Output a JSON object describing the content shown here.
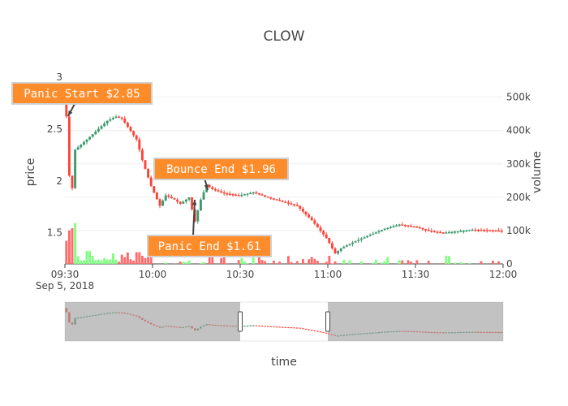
{
  "chart_data": {
    "type": "candlestick",
    "title": "CLOW",
    "xlabel": "time",
    "ylabel_price": "price",
    "ylabel_volume": "volume",
    "x_range": [
      "09:30",
      "12:00"
    ],
    "x_ticks": [
      "09:30",
      "10:00",
      "10:30",
      "11:00",
      "11:30",
      "12:00"
    ],
    "x_date_label": "Sep 5, 2018",
    "y_price_range": [
      1.2,
      3.0
    ],
    "y_price_ticks": [
      "1.5",
      "2",
      "2.5",
      "3"
    ],
    "y_volume_range": [
      0,
      560000
    ],
    "y_volume_ticks": [
      "0",
      "100k",
      "200k",
      "300k",
      "400k",
      "500k"
    ],
    "colors": {
      "up": "#3d9970",
      "down": "#ff4136",
      "vol_up": "#7fff7f",
      "vol_down": "#ff6b6b",
      "annotation": "#ff8c2a",
      "range_mask": "#999999"
    },
    "price_anchors": [
      [
        "09:30",
        2.85
      ],
      [
        "09:31",
        2.62
      ],
      [
        "09:32",
        2.05
      ],
      [
        "09:33",
        1.93
      ],
      [
        "09:34",
        2.3
      ],
      [
        "09:36",
        2.35
      ],
      [
        "09:40",
        2.45
      ],
      [
        "09:45",
        2.58
      ],
      [
        "09:48",
        2.62
      ],
      [
        "09:50",
        2.6
      ],
      [
        "09:52",
        2.52
      ],
      [
        "09:55",
        2.4
      ],
      [
        "09:57",
        2.2
      ],
      [
        "10:00",
        1.95
      ],
      [
        "10:03",
        1.76
      ],
      [
        "10:05",
        1.86
      ],
      [
        "10:08",
        1.82
      ],
      [
        "10:10",
        1.78
      ],
      [
        "10:13",
        1.84
      ],
      [
        "10:15",
        1.61
      ],
      [
        "10:17",
        1.82
      ],
      [
        "10:19",
        1.96
      ],
      [
        "10:21",
        1.92
      ],
      [
        "10:25",
        1.88
      ],
      [
        "10:30",
        1.86
      ],
      [
        "10:35",
        1.89
      ],
      [
        "10:40",
        1.84
      ],
      [
        "10:45",
        1.8
      ],
      [
        "10:50",
        1.76
      ],
      [
        "10:55",
        1.62
      ],
      [
        "11:00",
        1.45
      ],
      [
        "11:03",
        1.3
      ],
      [
        "11:05",
        1.35
      ],
      [
        "11:10",
        1.42
      ],
      [
        "11:15",
        1.48
      ],
      [
        "11:20",
        1.54
      ],
      [
        "11:25",
        1.58
      ],
      [
        "11:30",
        1.56
      ],
      [
        "11:35",
        1.52
      ],
      [
        "11:40",
        1.5
      ],
      [
        "11:50",
        1.53
      ],
      [
        "12:00",
        1.52
      ]
    ],
    "annotations": [
      {
        "text": "Panic Start $2.85",
        "time": "09:30",
        "price": 2.85
      },
      {
        "text": "Bounce End $1.96",
        "time": "10:19",
        "price": 1.96
      },
      {
        "text": "Panic End $1.61",
        "time": "10:15",
        "price": 1.61
      }
    ],
    "range_slider_window": [
      "10:30",
      "11:00"
    ]
  }
}
